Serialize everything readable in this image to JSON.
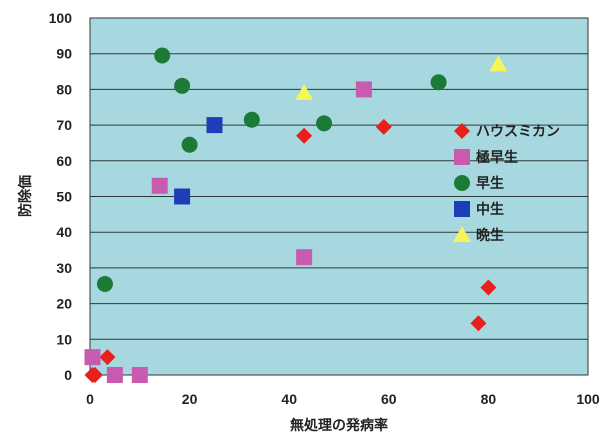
{
  "chart_data": {
    "type": "scatter",
    "xlabel": "無処理の発病率",
    "ylabel": "防除価",
    "xlim": [
      0,
      100
    ],
    "ylim": [
      0,
      100
    ],
    "x_ticks": [
      0,
      20,
      40,
      60,
      80,
      100
    ],
    "y_ticks": [
      0,
      10,
      20,
      30,
      40,
      50,
      60,
      70,
      80,
      90,
      100
    ],
    "grid": "horizontal",
    "plot_background": "#a7d8df",
    "legend_position": "right",
    "series": [
      {
        "name": "ハウスミカン",
        "marker": "diamond",
        "color": "#e8201c",
        "points": [
          [
            0.5,
            0
          ],
          [
            1,
            0
          ],
          [
            3.5,
            5
          ],
          [
            43,
            67
          ],
          [
            59,
            69.5
          ],
          [
            78,
            14.5
          ],
          [
            80,
            24.5
          ]
        ]
      },
      {
        "name": "極早生",
        "marker": "square",
        "color": "#c85bb0",
        "points": [
          [
            0.5,
            5
          ],
          [
            5,
            0
          ],
          [
            10,
            0
          ],
          [
            14,
            53
          ],
          [
            43,
            33
          ],
          [
            55,
            80
          ]
        ]
      },
      {
        "name": "早生",
        "marker": "circle",
        "color": "#1a7a36",
        "points": [
          [
            3,
            25.5
          ],
          [
            14.5,
            89.5
          ],
          [
            18.5,
            81
          ],
          [
            20,
            64.5
          ],
          [
            32.5,
            71.5
          ],
          [
            47,
            70.5
          ],
          [
            70,
            82
          ]
        ]
      },
      {
        "name": "中生",
        "marker": "square",
        "color": "#1c3fb8",
        "points": [
          [
            18.5,
            50
          ],
          [
            25,
            70
          ]
        ]
      },
      {
        "name": "晩生",
        "marker": "triangle",
        "color": "#f5f55a",
        "points": [
          [
            43,
            79
          ],
          [
            82,
            87
          ]
        ]
      }
    ]
  }
}
